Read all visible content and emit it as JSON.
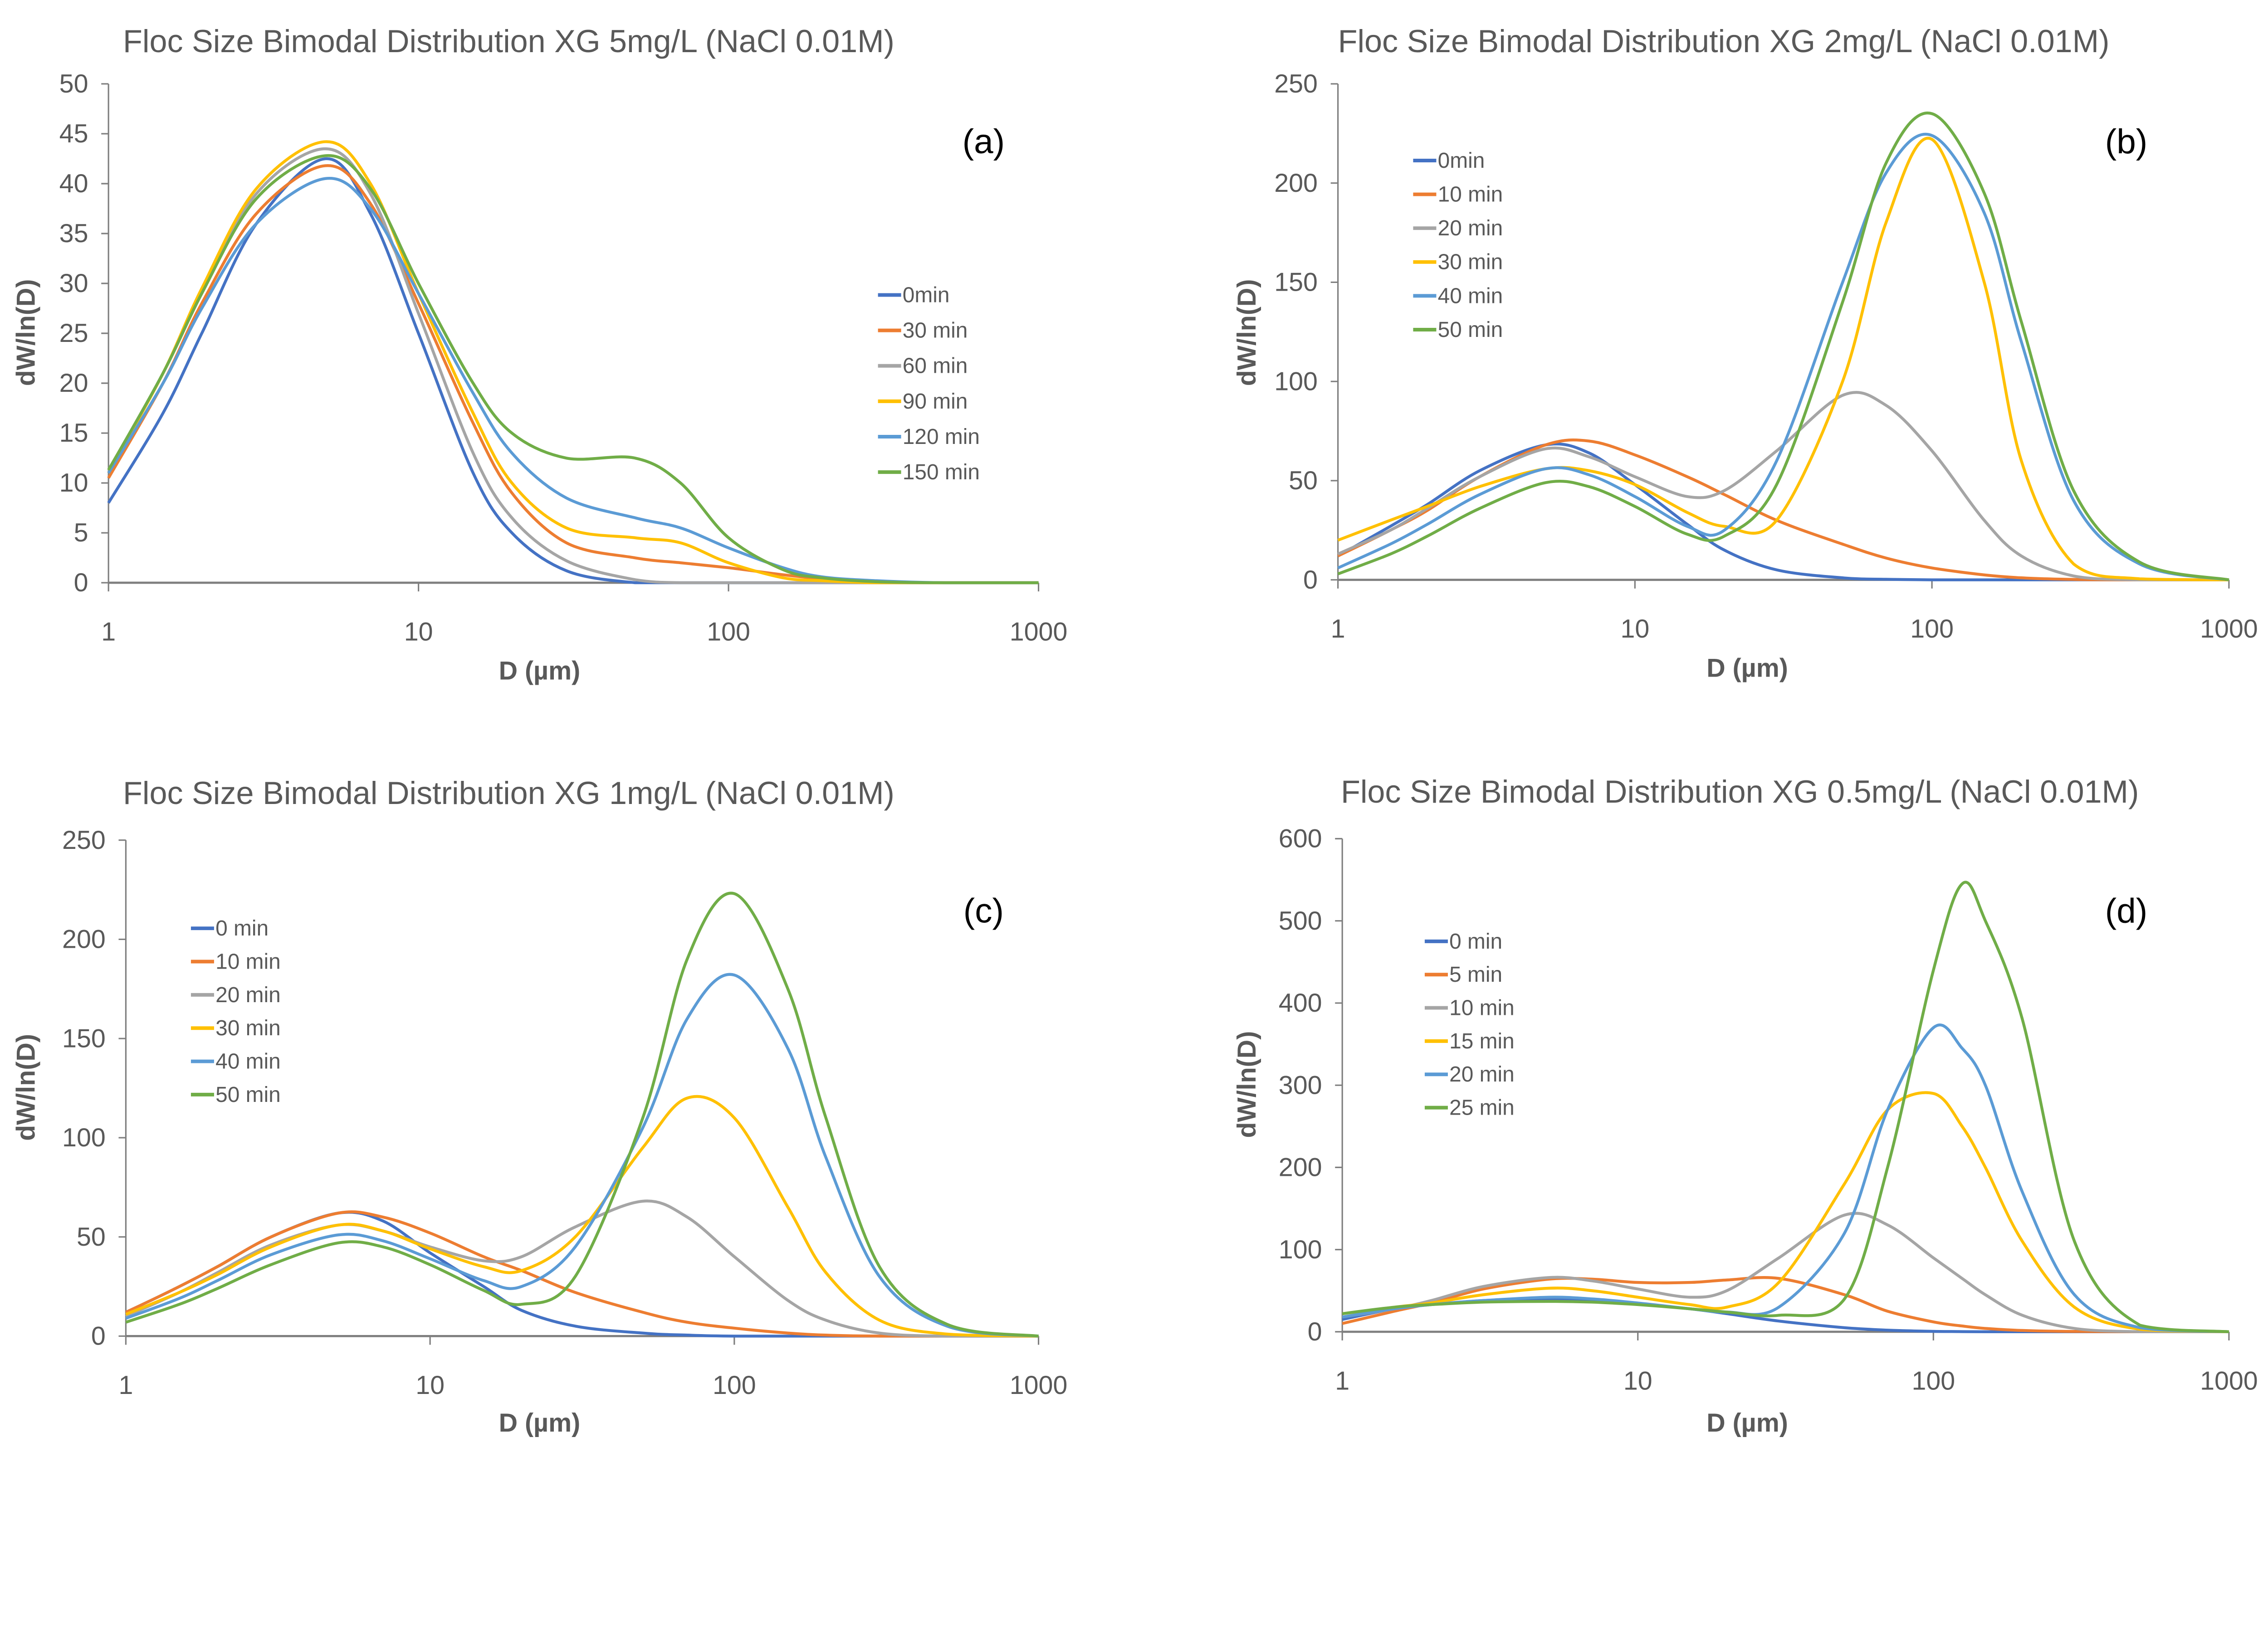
{
  "colors": [
    "#4472C4",
    "#ED7D31",
    "#A5A5A5",
    "#FFC000",
    "#5B9BD5",
    "#70AD47"
  ],
  "chart_data": [
    {
      "type": "line",
      "panel_label": "(a)",
      "title": "Floc Size Bimodal Distribution XG 5mg/L (NaCl 0.01M)",
      "xlabel": "D (µm)",
      "ylabel": "dW/ln(D)",
      "xscale": "log",
      "xlim": [
        1,
        1000
      ],
      "ylim": [
        0,
        50
      ],
      "xticks": [
        1,
        10,
        100,
        1000
      ],
      "yticks": [
        0,
        5,
        10,
        15,
        20,
        25,
        30,
        35,
        40,
        45,
        50
      ],
      "legend": "right",
      "x": [
        1,
        1.5,
        2,
        3,
        5,
        7,
        10,
        15,
        20,
        30,
        50,
        70,
        100,
        150,
        200,
        300,
        500,
        1000
      ],
      "series": [
        {
          "name": "0min",
          "values": [
            8,
            17,
            25,
            36,
            42.5,
            37,
            25,
            11,
            5,
            1.2,
            0,
            0,
            0,
            0,
            0,
            0,
            0,
            0
          ]
        },
        {
          "name": "30 min",
          "values": [
            10.5,
            20,
            28,
            37,
            41.8,
            38,
            28,
            16,
            9,
            4,
            2.5,
            2,
            1.5,
            0.8,
            0.4,
            0.1,
            0,
            0
          ]
        },
        {
          "name": "60 min",
          "values": [
            11,
            21,
            29,
            39,
            43.5,
            39,
            27,
            13,
            6.5,
            2.2,
            0.3,
            0,
            0,
            0,
            0,
            0,
            0,
            0
          ]
        },
        {
          "name": "90 min",
          "values": [
            11,
            21,
            29.5,
            39.5,
            44.2,
            40,
            29,
            17,
            10,
            5.5,
            4.5,
            4,
            2,
            0.5,
            0.2,
            0,
            0,
            0
          ]
        },
        {
          "name": "120 min",
          "values": [
            11,
            20,
            27.5,
            36,
            40.5,
            37.5,
            29,
            19,
            13,
            8.5,
            6.5,
            5.5,
            3.5,
            1.5,
            0.6,
            0.2,
            0,
            0
          ]
        },
        {
          "name": "150 min",
          "values": [
            11.3,
            21,
            29,
            38.5,
            42.8,
            39.5,
            30,
            20,
            15,
            12.5,
            12.5,
            10,
            4.5,
            1.3,
            0.5,
            0.1,
            0,
            0
          ]
        }
      ]
    },
    {
      "type": "line",
      "panel_label": "(b)",
      "title": "Floc Size Bimodal Distribution XG 2mg/L (NaCl 0.01M)",
      "xlabel": "D (µm)",
      "ylabel": "dW/ln(D)",
      "xscale": "log",
      "xlim": [
        1,
        1000
      ],
      "ylim": [
        0,
        250
      ],
      "xticks": [
        1,
        10,
        100,
        1000
      ],
      "yticks": [
        0,
        50,
        100,
        150,
        200,
        250
      ],
      "legend": "top-left",
      "x": [
        1,
        1.5,
        2,
        3,
        5,
        7,
        10,
        15,
        20,
        30,
        50,
        70,
        100,
        150,
        200,
        300,
        500,
        1000
      ],
      "series": [
        {
          "name": "0min",
          "values": [
            12,
            27,
            38,
            55,
            68,
            64,
            48,
            28,
            15,
            5,
            1,
            0.3,
            0,
            0,
            0,
            0,
            0,
            0
          ]
        },
        {
          "name": "10 min",
          "values": [
            12,
            25,
            35,
            52,
            68,
            70,
            63,
            52,
            43,
            30,
            18,
            11,
            6,
            2.5,
            1,
            0.2,
            0,
            0
          ]
        },
        {
          "name": "20 min",
          "values": [
            13,
            25,
            36,
            52,
            66,
            62,
            52,
            42,
            45,
            65,
            93,
            88,
            65,
            30,
            12,
            2,
            0,
            0
          ]
        },
        {
          "name": "30 min",
          "values": [
            20,
            30,
            37,
            47,
            56,
            55,
            48,
            34,
            27,
            30,
            100,
            180,
            222,
            150,
            60,
            8,
            0.5,
            0
          ]
        },
        {
          "name": "40 min",
          "values": [
            6,
            18,
            28,
            43,
            56,
            53,
            42,
            27,
            25,
            60,
            150,
            205,
            224,
            185,
            120,
            40,
            8,
            0
          ]
        },
        {
          "name": "50 min",
          "values": [
            3,
            13,
            22,
            36,
            49,
            47,
            37,
            23,
            22,
            48,
            140,
            210,
            235,
            195,
            130,
            45,
            9,
            0
          ]
        }
      ]
    },
    {
      "type": "line",
      "panel_label": "(c)",
      "title": "Floc Size Bimodal Distribution XG 1mg/L (NaCl 0.01M)",
      "xlabel": "D (µm)",
      "ylabel": "dW/ln(D)",
      "xscale": "log",
      "xlim": [
        1,
        1000
      ],
      "ylim": [
        0,
        250
      ],
      "xticks": [
        1,
        10,
        100,
        1000
      ],
      "yticks": [
        0,
        50,
        100,
        150,
        200,
        250
      ],
      "legend": "top-left",
      "x": [
        1,
        1.5,
        2,
        3,
        5,
        7,
        10,
        15,
        20,
        30,
        50,
        70,
        100,
        150,
        200,
        300,
        500,
        1000
      ],
      "series": [
        {
          "name": "0 min",
          "values": [
            12,
            25,
            35,
            50,
            62,
            58,
            42,
            25,
            13,
            5,
            1.5,
            0.5,
            0,
            0,
            0,
            0,
            0,
            0
          ]
        },
        {
          "name": "10 min",
          "values": [
            12,
            25,
            35,
            50,
            62,
            60,
            52,
            40,
            33,
            22,
            12,
            7,
            4,
            1.5,
            0.5,
            0,
            0,
            0
          ]
        },
        {
          "name": "20 min",
          "values": [
            10,
            22,
            32,
            46,
            56,
            53,
            45,
            38,
            40,
            55,
            68,
            60,
            40,
            18,
            8,
            1.5,
            0,
            0
          ]
        },
        {
          "name": "30 min",
          "values": [
            11,
            22,
            31,
            45,
            56,
            53,
            44,
            35,
            33,
            50,
            95,
            120,
            110,
            65,
            32,
            8,
            1,
            0
          ]
        },
        {
          "name": "40 min",
          "values": [
            9,
            19,
            28,
            41,
            51,
            48,
            39,
            28,
            25,
            45,
            105,
            160,
            182,
            145,
            90,
            30,
            5,
            0
          ]
        },
        {
          "name": "50 min",
          "values": [
            7,
            16,
            24,
            36,
            47,
            45,
            36,
            23,
            16,
            30,
            110,
            190,
            223,
            175,
            110,
            35,
            6,
            0
          ]
        }
      ]
    },
    {
      "type": "line",
      "panel_label": "(d)",
      "title": "Floc Size Bimodal Distribution XG 0.5mg/L (NaCl 0.01M)",
      "xlabel": "D (µm)",
      "ylabel": "dW/ln(D)",
      "xscale": "log",
      "xlim": [
        1,
        1000
      ],
      "ylim": [
        0,
        600
      ],
      "xticks": [
        1,
        10,
        100,
        1000
      ],
      "yticks": [
        0,
        100,
        200,
        300,
        400,
        500,
        600
      ],
      "legend": "top-left",
      "x": [
        1,
        1.5,
        2,
        3,
        5,
        7,
        10,
        15,
        20,
        30,
        50,
        70,
        100,
        125,
        150,
        200,
        300,
        500,
        1000
      ],
      "series": [
        {
          "name": "0 min",
          "values": [
            15,
            28,
            33,
            38,
            40,
            38,
            34,
            28,
            22,
            13,
            5,
            2,
            0.5,
            0.2,
            0,
            0,
            0,
            0,
            0
          ]
        },
        {
          "name": "5 min",
          "values": [
            10,
            25,
            35,
            52,
            64,
            64,
            60,
            60,
            63,
            65,
            45,
            25,
            12,
            7,
            4,
            1.5,
            0.3,
            0,
            0
          ]
        },
        {
          "name": "10 min",
          "values": [
            18,
            28,
            38,
            55,
            66,
            62,
            52,
            42,
            50,
            90,
            142,
            130,
            90,
            65,
            45,
            20,
            4,
            0,
            0
          ]
        },
        {
          "name": "15 min",
          "values": [
            22,
            30,
            35,
            45,
            53,
            50,
            42,
            33,
            30,
            60,
            180,
            270,
            290,
            250,
            200,
            110,
            30,
            3,
            0
          ]
        },
        {
          "name": "20 min",
          "values": [
            18,
            28,
            33,
            38,
            42,
            40,
            35,
            28,
            24,
            30,
            120,
            270,
            370,
            345,
            300,
            170,
            45,
            5,
            0
          ]
        },
        {
          "name": "25 min",
          "values": [
            22,
            30,
            33,
            36,
            37,
            36,
            33,
            28,
            24,
            20,
            40,
            200,
            440,
            545,
            500,
            380,
            110,
            8,
            0
          ]
        }
      ]
    }
  ]
}
